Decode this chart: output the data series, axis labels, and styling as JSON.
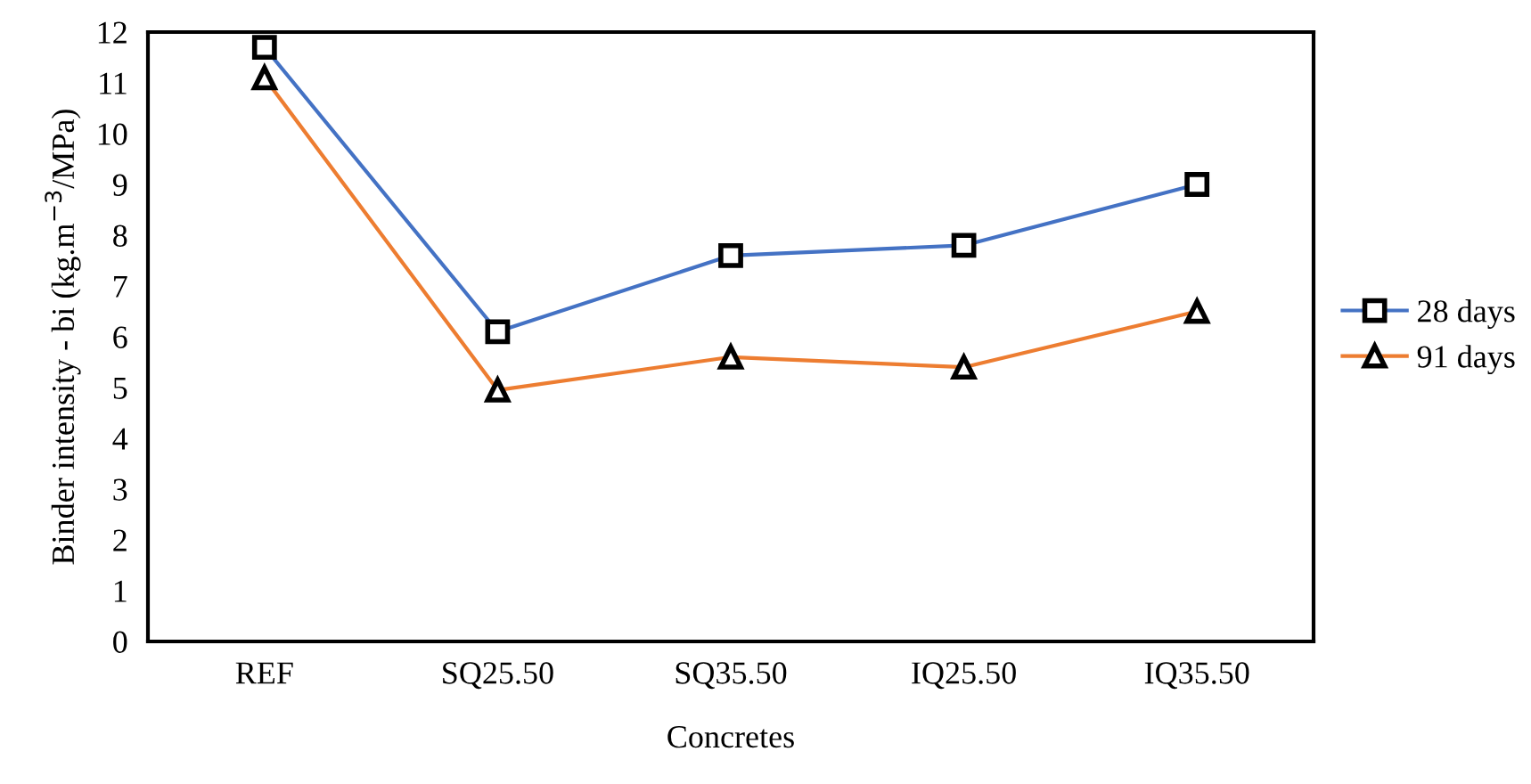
{
  "chart_data": {
    "type": "line",
    "xlabel": "Concretes",
    "ylabel": "Binder intensity - bi (kg.m$^{−3}$/MPa)",
    "categories": [
      "REF",
      "SQ25.50",
      "SQ35.50",
      "IQ25.50",
      "IQ35.50"
    ],
    "series": [
      {
        "name": "28 days",
        "color": "#4472c4",
        "marker": "square",
        "values": [
          11.7,
          6.1,
          7.6,
          7.8,
          9.0
        ]
      },
      {
        "name": "91 days",
        "color": "#ed7d31",
        "marker": "triangle",
        "values": [
          11.1,
          4.95,
          5.6,
          5.4,
          6.5
        ]
      }
    ],
    "ylim": [
      0,
      12
    ],
    "yticks": [
      0,
      1,
      2,
      3,
      4,
      5,
      6,
      7,
      8,
      9,
      10,
      11,
      12
    ],
    "grid": false,
    "legend": "right"
  }
}
